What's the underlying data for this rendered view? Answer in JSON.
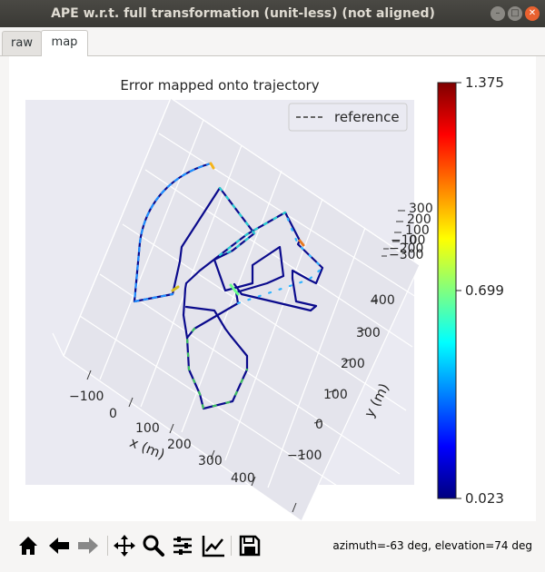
{
  "window": {
    "title": "APE w.r.t. full transformation (unit-less) (not aligned)",
    "min_glyph": "–",
    "max_glyph": "□",
    "close_glyph": "✕"
  },
  "tabs": [
    {
      "label": "raw",
      "active": false
    },
    {
      "label": "map",
      "active": true
    }
  ],
  "chart_data": {
    "type": "line",
    "title": "Error mapped onto trajectory",
    "legend": {
      "entries": [
        "reference"
      ],
      "position": "top-right"
    },
    "xlabel": "x (m)",
    "ylabel": "y (m)",
    "x_ticks": [
      "−100",
      "0",
      "100",
      "200",
      "300",
      "400"
    ],
    "y_ticks": [
      "−100",
      "0",
      "100",
      "200",
      "300",
      "400"
    ],
    "z_ticks": [
      "300",
      "200",
      "100",
      "0",
      "−100",
      "−200",
      "−300"
    ],
    "colorbar": {
      "colormap": "jet",
      "min": 0.023,
      "mid": 0.699,
      "max": 1.375,
      "labels": [
        "1.375",
        "0.699",
        "0.023"
      ],
      "colors": [
        "#7f0000",
        "#ff0000",
        "#ff8000",
        "#ffff00",
        "#80ff80",
        "#00ffff",
        "#0080ff",
        "#0000ff",
        "#00007f"
      ]
    }
  },
  "toolbar": {
    "buttons": [
      {
        "name": "home-icon"
      },
      {
        "name": "back-icon"
      },
      {
        "name": "forward-icon"
      },
      {
        "name": "pan-icon"
      },
      {
        "name": "zoom-icon"
      },
      {
        "name": "configure-subplots-icon"
      },
      {
        "name": "edit-axis-icon"
      },
      {
        "name": "save-icon"
      }
    ],
    "status": "azimuth=-63 deg, elevation=74 deg"
  }
}
